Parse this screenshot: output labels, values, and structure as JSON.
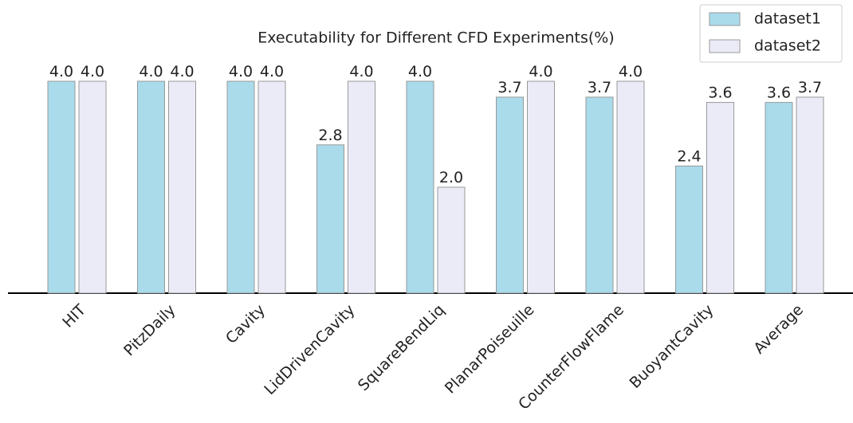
{
  "chart_data": {
    "type": "bar",
    "title": "Executability for Different CFD Experiments(%)",
    "categories": [
      "HIT",
      "PitzDaily",
      "Cavity",
      "LidDrivenCavity",
      "SquareBendLiq",
      "PlanarPoiseuille",
      "CounterFlowFlame",
      "BuoyantCavity",
      "Average"
    ],
    "series": [
      {
        "name": "dataset1",
        "color": "#a9dbeb",
        "values": [
          4,
          4,
          4,
          2.8,
          4,
          3.7,
          3.7,
          2.4,
          3.6
        ],
        "value_labels": [
          "4.0",
          "4.0",
          "4.0",
          "2.8",
          "4.0",
          "3.7",
          "3.7",
          "2.4",
          "3.6"
        ]
      },
      {
        "name": "dataset2",
        "color": "#ebebf8",
        "values": [
          4,
          4,
          4,
          4,
          2,
          4,
          4,
          3.6,
          3.7
        ],
        "value_labels": [
          "4.0",
          "4.0",
          "4.0",
          "4.0",
          "2.0",
          "4.0",
          "4.0",
          "3.6",
          "3.7"
        ]
      }
    ],
    "ylim": [
      0,
      4
    ],
    "legend": "upper right"
  }
}
